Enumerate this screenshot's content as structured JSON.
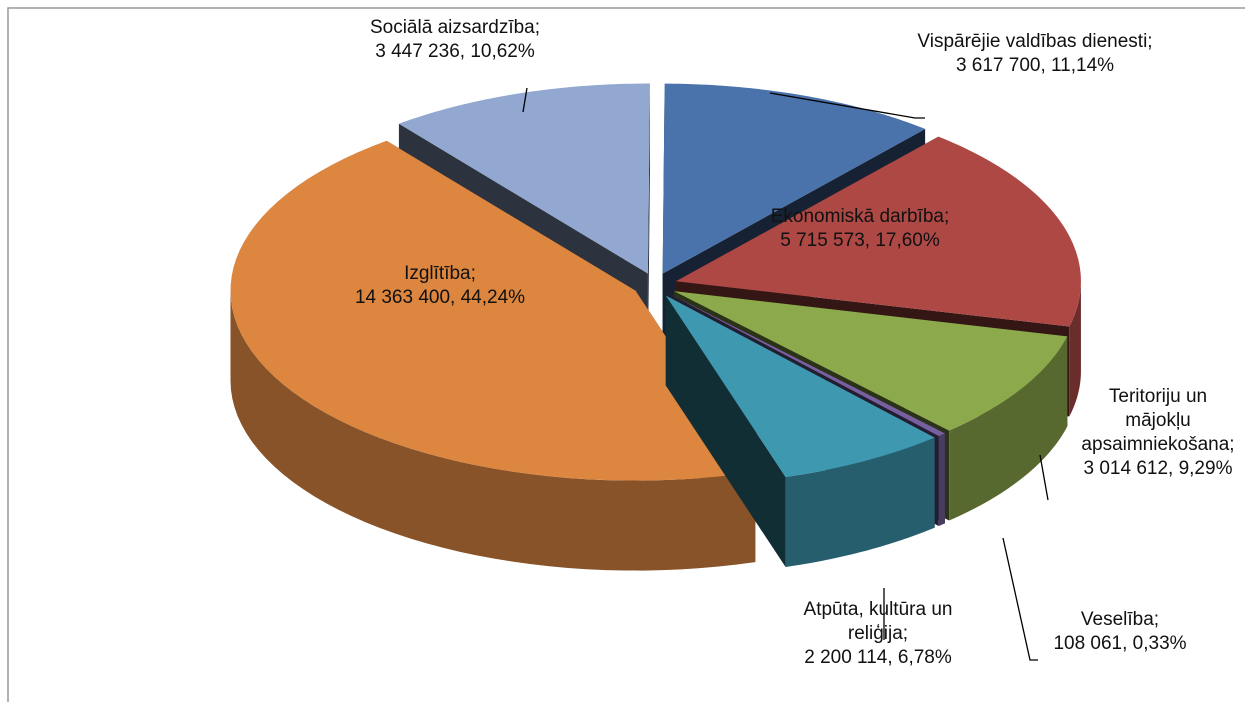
{
  "chart_data": {
    "type": "pie",
    "categories": [
      "Vispārējie valdības dienesti;",
      "Ekonomiskā darbība;",
      "Teritoriju un mājokļu apsaimniekošana;",
      "Veselība;",
      "Atpūta, kultūra un reliģija;",
      "Izglītība;",
      "Sociālā aizsardzība;"
    ],
    "values": [
      3617700,
      5715573,
      3014612,
      108061,
      2200114,
      14363400,
      3447236
    ],
    "value_labels": [
      "3 617 700, 11,14%",
      "5 715 573, 17,60%",
      "3 014 612, 9,29%",
      "108 061, 0,33%",
      "2 200 114, 6,78%",
      "14 363 400, 44,24%",
      "3 447 236, 10,62%"
    ],
    "colors": [
      "#4a72ab",
      "#ad4845",
      "#8caa4c",
      "#7660a0",
      "#3d98b0",
      "#dc8640",
      "#93a8d0"
    ]
  }
}
